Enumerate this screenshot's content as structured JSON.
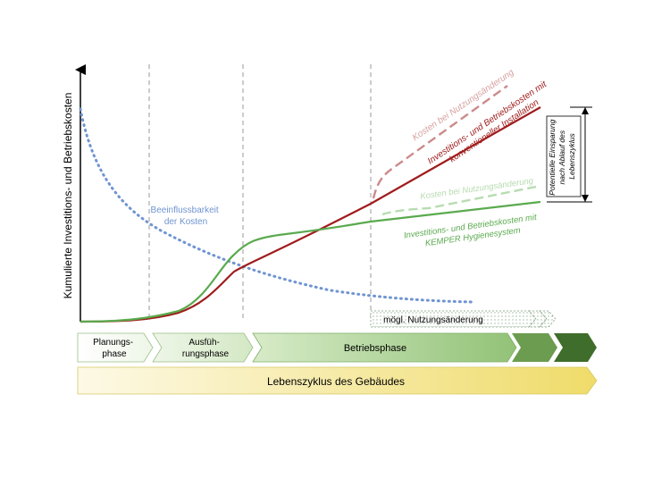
{
  "diagram": {
    "y_axis_label": "Kumulierte Investitions- und Betriebskosten",
    "influence_label_line1": "Beeinflussbarkeit",
    "influence_label_line2": "der Kosten",
    "conv_change_label": "Kosten bei Nutzungsänderung",
    "conv_label_line1": "Investitions- und Betriebskosten mit",
    "conv_label_line2": "konventioneller Installation",
    "kemper_change_label": "Kosten bei Nutzungsänderung",
    "kemper_label_line1": "Investitions- und Betriebskosten mit",
    "kemper_label_line2": "KEMPER Hygienesystem",
    "savings_line1": "Potentielle Einsparung",
    "savings_line2": "nach Ablauf des",
    "savings_line3": "Lebenszyklus",
    "usage_change_label": "mögl. Nutzungsänderung",
    "phase_planning_line1": "Planungs-",
    "phase_planning_line2": "phase",
    "phase_execution_line1": "Ausfüh-",
    "phase_execution_line2": "rungsphase",
    "phase_operation": "Betriebsphase",
    "lifecycle_label": "Lebenszyklus des Gebäudes"
  },
  "colors": {
    "conventional": "#a01c1c",
    "conventional_change": "#cc8a8a",
    "kemper": "#5aaa4e",
    "kemper_change": "#b7dcb0",
    "influence": "#6f94d2",
    "phase_light": "#e6f2dc",
    "phase_mid": "#a8d08d",
    "phase_dark": "#3f6d2b",
    "lifecycle_start": "#fbf5dc",
    "lifecycle_end": "#f0e070"
  }
}
